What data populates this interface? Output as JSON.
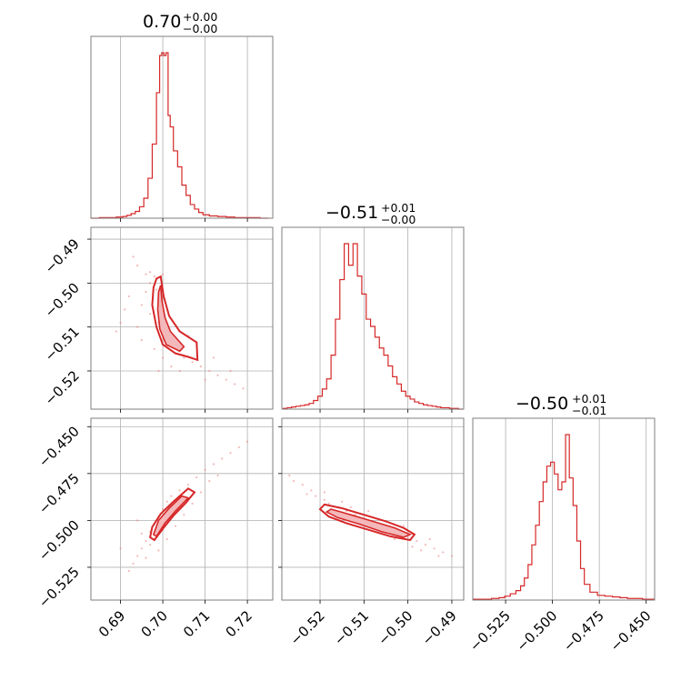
{
  "chart_data": {
    "type": "corner",
    "color": "#d62728",
    "params": [
      {
        "label": "0.70",
        "upper": "+0.00",
        "lower": "−0.00",
        "median": 0.701,
        "lim": [
          0.683,
          0.726
        ],
        "ticks": [
          0.69,
          0.7,
          0.71,
          0.72
        ],
        "ticklabels": [
          "0.69",
          "0.70",
          "0.71",
          "0.72"
        ]
      },
      {
        "label": "−0.51",
        "upper": "+0.01",
        "lower": "−0.00",
        "median": -0.5117,
        "lim": [
          -0.5287,
          -0.4873
        ],
        "ticks": [
          -0.52,
          -0.51,
          -0.5,
          -0.49
        ],
        "ticklabels": [
          "−0.52",
          "−0.51",
          "−0.50",
          "−0.49"
        ]
      },
      {
        "label": "−0.50",
        "upper": "+0.01",
        "lower": "−0.01",
        "median": -0.4975,
        "lim": [
          -0.5425,
          -0.4455
        ],
        "ticks": [
          -0.525,
          -0.5,
          -0.475,
          -0.45
        ],
        "ticklabels": [
          "−0.525",
          "−0.500",
          "−0.475",
          "−0.450"
        ]
      }
    ],
    "histograms": [
      {
        "param": 0,
        "bin_centers": [
          0.684,
          0.686,
          0.688,
          0.69,
          0.691,
          0.692,
          0.693,
          0.694,
          0.695,
          0.696,
          0.697,
          0.698,
          0.699,
          0.6995,
          0.7,
          0.7005,
          0.701,
          0.7015,
          0.702,
          0.703,
          0.704,
          0.705,
          0.706,
          0.707,
          0.708,
          0.709,
          0.71,
          0.712,
          0.714,
          0.716,
          0.718,
          0.72,
          0.722,
          0.724
        ],
        "counts": [
          0,
          1,
          1,
          2,
          3,
          5,
          8,
          12,
          20,
          35,
          70,
          130,
          220,
          285,
          290,
          285,
          290,
          180,
          160,
          118,
          90,
          58,
          40,
          24,
          16,
          10,
          6,
          4,
          3,
          2,
          1,
          1,
          1,
          0
        ]
      },
      {
        "param": 1,
        "bin_centers": [
          -0.528,
          -0.527,
          -0.526,
          -0.525,
          -0.524,
          -0.523,
          -0.522,
          -0.521,
          -0.52,
          -0.519,
          -0.518,
          -0.517,
          -0.516,
          -0.515,
          -0.514,
          -0.513,
          -0.512,
          -0.511,
          -0.51,
          -0.509,
          -0.508,
          -0.507,
          -0.506,
          -0.505,
          -0.504,
          -0.503,
          -0.502,
          -0.501,
          -0.5,
          -0.499,
          -0.498,
          -0.497,
          -0.496,
          -0.495,
          -0.494,
          -0.493,
          -0.492,
          -0.491,
          -0.49,
          -0.489,
          -0.488
        ],
        "counts": [
          1,
          2,
          3,
          4,
          5,
          6,
          8,
          12,
          18,
          28,
          42,
          75,
          125,
          180,
          230,
          200,
          230,
          185,
          160,
          125,
          115,
          100,
          85,
          75,
          60,
          45,
          35,
          25,
          18,
          14,
          10,
          8,
          6,
          5,
          4,
          3,
          2,
          2,
          1,
          1,
          0
        ]
      },
      {
        "param": 2,
        "bin_centers": [
          -0.54,
          -0.535,
          -0.53,
          -0.527,
          -0.524,
          -0.521,
          -0.518,
          -0.516,
          -0.514,
          -0.512,
          -0.51,
          -0.508,
          -0.506,
          -0.504,
          -0.502,
          -0.5,
          -0.498,
          -0.496,
          -0.494,
          -0.492,
          -0.49,
          -0.488,
          -0.486,
          -0.484,
          -0.482,
          -0.478,
          -0.474,
          -0.47,
          -0.466,
          -0.462,
          -0.458,
          -0.454,
          -0.45,
          -0.447
        ],
        "counts": [
          1,
          1,
          2,
          3,
          5,
          8,
          12,
          18,
          28,
          45,
          70,
          95,
          125,
          150,
          170,
          175,
          160,
          140,
          150,
          210,
          155,
          120,
          75,
          40,
          20,
          10,
          6,
          5,
          4,
          3,
          2,
          2,
          1,
          1
        ]
      }
    ],
    "scatter_panels": [
      {
        "x_param": 0,
        "y_param": 1,
        "contour_inner": [
          [
            0.6995,
            -0.5005
          ],
          [
            0.6998,
            -0.504
          ],
          [
            0.7005,
            -0.5078
          ],
          [
            0.7018,
            -0.511
          ],
          [
            0.705,
            -0.5145
          ],
          [
            0.704,
            -0.5155
          ],
          [
            0.7008,
            -0.514
          ],
          [
            0.6993,
            -0.5105
          ],
          [
            0.6988,
            -0.506
          ],
          [
            0.699,
            -0.502
          ]
        ],
        "contour_outer": [
          [
            0.6985,
            -0.499
          ],
          [
            0.6995,
            -0.4985
          ],
          [
            0.7002,
            -0.503
          ],
          [
            0.7015,
            -0.5075
          ],
          [
            0.704,
            -0.511
          ],
          [
            0.708,
            -0.5135
          ],
          [
            0.7082,
            -0.5175
          ],
          [
            0.706,
            -0.5168
          ],
          [
            0.703,
            -0.516
          ],
          [
            0.7,
            -0.514
          ],
          [
            0.6985,
            -0.51
          ],
          [
            0.6975,
            -0.505
          ],
          [
            0.6978,
            -0.501
          ]
        ],
        "points": [
          [
            0.693,
            -0.494
          ],
          [
            0.694,
            -0.496
          ],
          [
            0.696,
            -0.498
          ],
          [
            0.697,
            -0.5
          ],
          [
            0.698,
            -0.4985
          ],
          [
            0.6985,
            -0.5015
          ],
          [
            0.696,
            -0.502
          ],
          [
            0.695,
            -0.505
          ],
          [
            0.697,
            -0.507
          ],
          [
            0.699,
            -0.509
          ],
          [
            0.7,
            -0.512
          ],
          [
            0.701,
            -0.514
          ],
          [
            0.703,
            -0.516
          ],
          [
            0.705,
            -0.517
          ],
          [
            0.707,
            -0.518
          ],
          [
            0.709,
            -0.519
          ],
          [
            0.711,
            -0.52
          ],
          [
            0.713,
            -0.521
          ],
          [
            0.715,
            -0.522
          ],
          [
            0.717,
            -0.523
          ],
          [
            0.719,
            -0.524
          ],
          [
            0.692,
            -0.503
          ],
          [
            0.691,
            -0.506
          ],
          [
            0.69,
            -0.509
          ],
          [
            0.689,
            -0.511
          ],
          [
            0.706,
            -0.512
          ],
          [
            0.708,
            -0.514
          ],
          [
            0.702,
            -0.519
          ],
          [
            0.7,
            -0.517
          ],
          [
            0.698,
            -0.515
          ],
          [
            0.695,
            -0.513
          ],
          [
            0.694,
            -0.51
          ],
          [
            0.697,
            -0.4975
          ],
          [
            0.6995,
            -0.4985
          ],
          [
            0.7,
            -0.498
          ],
          [
            0.704,
            -0.52
          ],
          [
            0.712,
            -0.517
          ],
          [
            0.716,
            -0.52
          ],
          [
            0.71,
            -0.522
          ],
          [
            0.699,
            -0.52
          ]
        ]
      },
      {
        "x_param": 0,
        "y_param": 2,
        "contour_inner": [
          [
            0.6985,
            -0.5085
          ],
          [
            0.7005,
            -0.5015
          ],
          [
            0.703,
            -0.495
          ],
          [
            0.706,
            -0.488
          ],
          [
            0.7045,
            -0.487
          ],
          [
            0.7015,
            -0.4935
          ],
          [
            0.699,
            -0.5
          ],
          [
            0.6978,
            -0.5075
          ]
        ],
        "contour_outer": [
          [
            0.698,
            -0.5105
          ],
          [
            0.7,
            -0.5045
          ],
          [
            0.7025,
            -0.4975
          ],
          [
            0.7055,
            -0.4905
          ],
          [
            0.7075,
            -0.485
          ],
          [
            0.706,
            -0.483
          ],
          [
            0.7025,
            -0.49
          ],
          [
            0.6995,
            -0.4965
          ],
          [
            0.6975,
            -0.5035
          ],
          [
            0.697,
            -0.509
          ]
        ],
        "points": [
          [
            0.693,
            -0.523
          ],
          [
            0.692,
            -0.527
          ],
          [
            0.694,
            -0.519
          ],
          [
            0.695,
            -0.515
          ],
          [
            0.696,
            -0.511
          ],
          [
            0.697,
            -0.506
          ],
          [
            0.698,
            -0.502
          ],
          [
            0.699,
            -0.498
          ],
          [
            0.7,
            -0.494
          ],
          [
            0.701,
            -0.49
          ],
          [
            0.702,
            -0.487
          ],
          [
            0.704,
            -0.484
          ],
          [
            0.706,
            -0.481
          ],
          [
            0.708,
            -0.477
          ],
          [
            0.71,
            -0.473
          ],
          [
            0.712,
            -0.47
          ],
          [
            0.714,
            -0.467
          ],
          [
            0.716,
            -0.464
          ],
          [
            0.718,
            -0.461
          ],
          [
            0.72,
            -0.458
          ],
          [
            0.696,
            -0.52
          ],
          [
            0.699,
            -0.516
          ],
          [
            0.701,
            -0.51
          ],
          [
            0.703,
            -0.503
          ],
          [
            0.705,
            -0.497
          ],
          [
            0.707,
            -0.491
          ],
          [
            0.709,
            -0.485
          ],
          [
            0.695,
            -0.507
          ],
          [
            0.694,
            -0.5
          ],
          [
            0.697,
            -0.513
          ],
          [
            0.69,
            -0.515
          ],
          [
            0.711,
            -0.479
          ],
          [
            0.713,
            -0.476
          ],
          [
            0.704,
            -0.489
          ],
          [
            0.7,
            -0.505
          ],
          [
            0.698,
            -0.51
          ]
        ]
      },
      {
        "x_param": 1,
        "y_param": 2,
        "contour_inner": [
          [
            -0.5175,
            -0.494
          ],
          [
            -0.513,
            -0.497
          ],
          [
            -0.508,
            -0.5005
          ],
          [
            -0.503,
            -0.504
          ],
          [
            -0.4995,
            -0.5075
          ],
          [
            -0.501,
            -0.509
          ],
          [
            -0.506,
            -0.506
          ],
          [
            -0.511,
            -0.502
          ],
          [
            -0.516,
            -0.4985
          ],
          [
            -0.5185,
            -0.4955
          ]
        ],
        "contour_outer": [
          [
            -0.519,
            -0.4915
          ],
          [
            -0.515,
            -0.4935
          ],
          [
            -0.51,
            -0.497
          ],
          [
            -0.505,
            -0.5005
          ],
          [
            -0.501,
            -0.504
          ],
          [
            -0.4985,
            -0.5075
          ],
          [
            -0.4995,
            -0.5105
          ],
          [
            -0.504,
            -0.5085
          ],
          [
            -0.509,
            -0.505
          ],
          [
            -0.514,
            -0.5015
          ],
          [
            -0.518,
            -0.498
          ],
          [
            -0.52,
            -0.494
          ]
        ],
        "points": [
          [
            -0.526,
            -0.479
          ],
          [
            -0.524,
            -0.481
          ],
          [
            -0.522,
            -0.484
          ],
          [
            -0.521,
            -0.487
          ],
          [
            -0.519,
            -0.489
          ],
          [
            -0.518,
            -0.491
          ],
          [
            -0.516,
            -0.493
          ],
          [
            -0.514,
            -0.495
          ],
          [
            -0.512,
            -0.497
          ],
          [
            -0.51,
            -0.499
          ],
          [
            -0.508,
            -0.501
          ],
          [
            -0.506,
            -0.503
          ],
          [
            -0.504,
            -0.505
          ],
          [
            -0.502,
            -0.507
          ],
          [
            -0.5,
            -0.509
          ],
          [
            -0.498,
            -0.511
          ],
          [
            -0.496,
            -0.513
          ],
          [
            -0.494,
            -0.515
          ],
          [
            -0.492,
            -0.517
          ],
          [
            -0.49,
            -0.519
          ],
          [
            -0.52,
            -0.494
          ],
          [
            -0.517,
            -0.496
          ],
          [
            -0.515,
            -0.49
          ],
          [
            -0.509,
            -0.495
          ],
          [
            -0.503,
            -0.51
          ],
          [
            -0.499,
            -0.514
          ],
          [
            -0.495,
            -0.51
          ],
          [
            -0.523,
            -0.486
          ],
          [
            -0.527,
            -0.476
          ],
          [
            -0.511,
            -0.502
          ],
          [
            -0.505,
            -0.506
          ],
          [
            -0.497,
            -0.516
          ],
          [
            -0.493,
            -0.519
          ],
          [
            -0.501,
            -0.503
          ],
          [
            -0.513,
            -0.493
          ],
          [
            -0.519,
            -0.485
          ]
        ]
      }
    ]
  }
}
